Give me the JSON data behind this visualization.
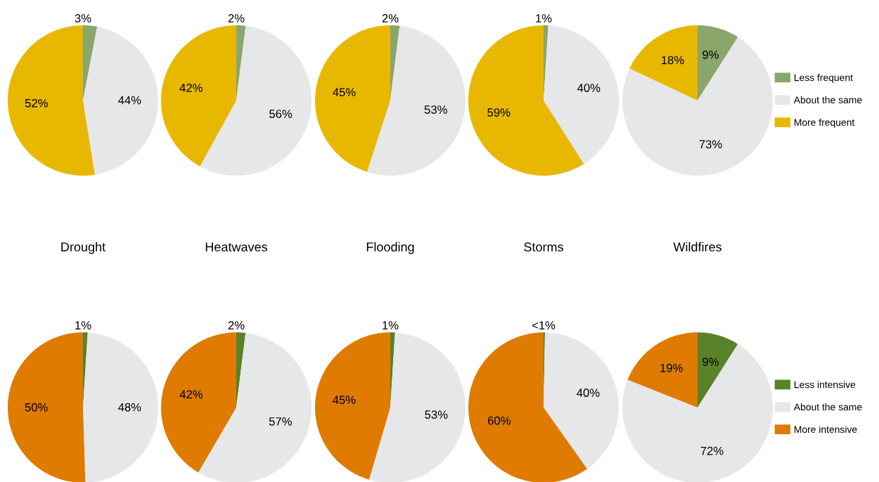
{
  "chart_data": [
    {
      "type": "pie",
      "title": "Drought",
      "categories": [
        null,
        null,
        null
      ],
      "values": [
        3,
        44,
        52
      ],
      "value_labels": [
        "3%",
        "44%",
        "52%"
      ],
      "colors": [
        "#8aa66a",
        "#e6e7e8",
        "#e8b800"
      ]
    },
    {
      "type": "pie",
      "title": "Heatwaves",
      "categories": [
        null,
        null,
        null
      ],
      "values": [
        2,
        56,
        42
      ],
      "value_labels": [
        "2%",
        "56%",
        "42%"
      ],
      "colors": [
        "#8aa66a",
        "#e6e7e8",
        "#e8b800"
      ]
    },
    {
      "type": "pie",
      "title": "Flooding",
      "categories": [
        null,
        null,
        null
      ],
      "values": [
        2,
        53,
        45
      ],
      "value_labels": [
        "2%",
        "53%",
        "45%"
      ],
      "colors": [
        "#8aa66a",
        "#e6e7e8",
        "#e8b800"
      ]
    },
    {
      "type": "pie",
      "title": "Storms",
      "categories": [
        null,
        null,
        null
      ],
      "values": [
        1,
        40,
        59
      ],
      "value_labels": [
        "1%",
        "40%",
        "59%"
      ],
      "colors": [
        "#8aa66a",
        "#e6e7e8",
        "#e8b800"
      ]
    },
    {
      "type": "pie",
      "title": "Wildfires",
      "categories": [
        "Less frequent",
        "About the same",
        "More frequent"
      ],
      "values": [
        9,
        73,
        18
      ],
      "value_labels": [
        "9%",
        "73%",
        "18%"
      ],
      "colors": [
        "#8aa66a",
        "#e6e7e8",
        "#e8b800"
      ],
      "legend": "right"
    },
    {
      "type": "pie",
      "categories": [
        null,
        null,
        null
      ],
      "values": [
        1,
        48,
        50
      ],
      "value_labels": [
        "1%",
        "48%",
        "50%"
      ],
      "colors": [
        "#5a8228",
        "#e6e7e8",
        "#de7b00"
      ]
    },
    {
      "type": "pie",
      "categories": [
        null,
        null,
        null
      ],
      "values": [
        2,
        57,
        42
      ],
      "value_labels": [
        "2%",
        "57%",
        "42%"
      ],
      "colors": [
        "#5a8228",
        "#e6e7e8",
        "#de7b00"
      ]
    },
    {
      "type": "pie",
      "categories": [
        null,
        null,
        null
      ],
      "values": [
        1,
        53,
        45
      ],
      "value_labels": [
        "1%",
        "53%",
        "45%"
      ],
      "colors": [
        "#5a8228",
        "#e6e7e8",
        "#de7b00"
      ]
    },
    {
      "type": "pie",
      "categories": [
        null,
        null,
        null
      ],
      "values": [
        0.3,
        40,
        60
      ],
      "value_labels": [
        "<1%",
        "40%",
        "60%"
      ],
      "colors": [
        "#5a8228",
        "#e6e7e8",
        "#de7b00"
      ]
    },
    {
      "type": "pie",
      "categories": [
        "Less intensive",
        "About the same",
        "More intensive"
      ],
      "values": [
        9,
        72,
        19
      ],
      "value_labels": [
        "9%",
        "72%",
        "19%"
      ],
      "colors": [
        "#5a8228",
        "#e6e7e8",
        "#de7b00"
      ],
      "legend": "right"
    }
  ]
}
